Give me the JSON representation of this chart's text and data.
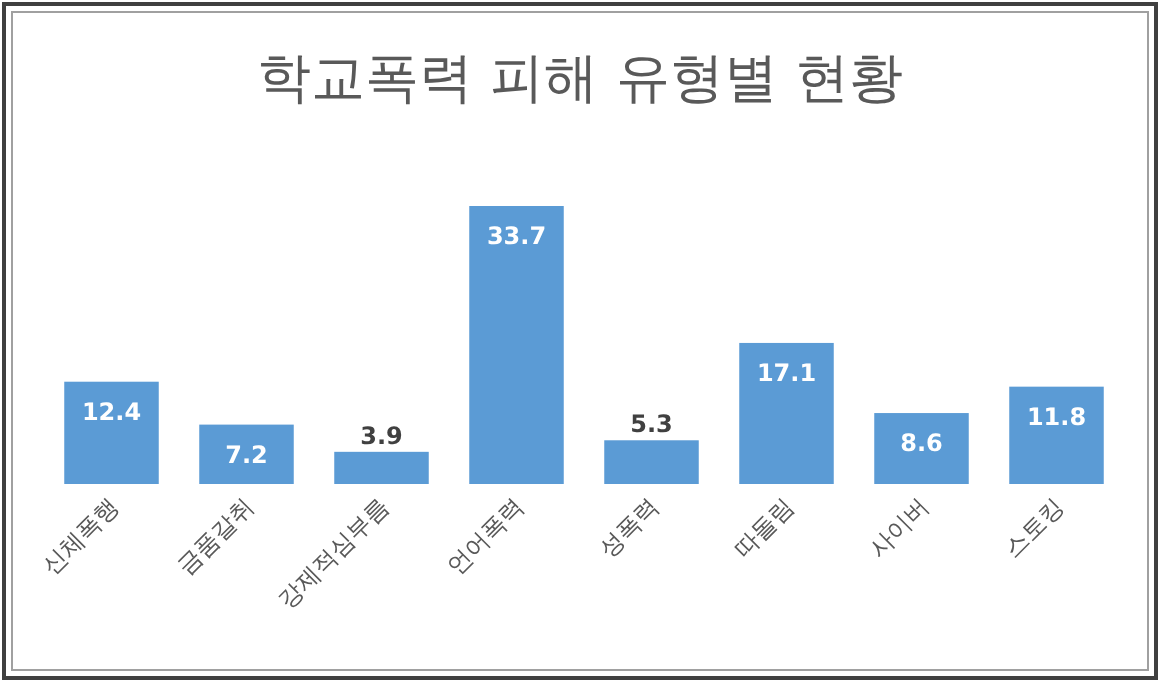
{
  "chart_data": {
    "type": "bar",
    "title": "학교폭력 피해 유형별 현황",
    "categories": [
      "신체폭행",
      "금품갈취",
      "강제적심부름",
      "언어폭력",
      "성폭력",
      "따돌림",
      "사이버",
      "스토킹"
    ],
    "values": [
      12.4,
      7.2,
      3.9,
      33.7,
      5.3,
      17.1,
      8.6,
      11.8
    ],
    "color": "#5b9bd5",
    "data_labels": true
  }
}
